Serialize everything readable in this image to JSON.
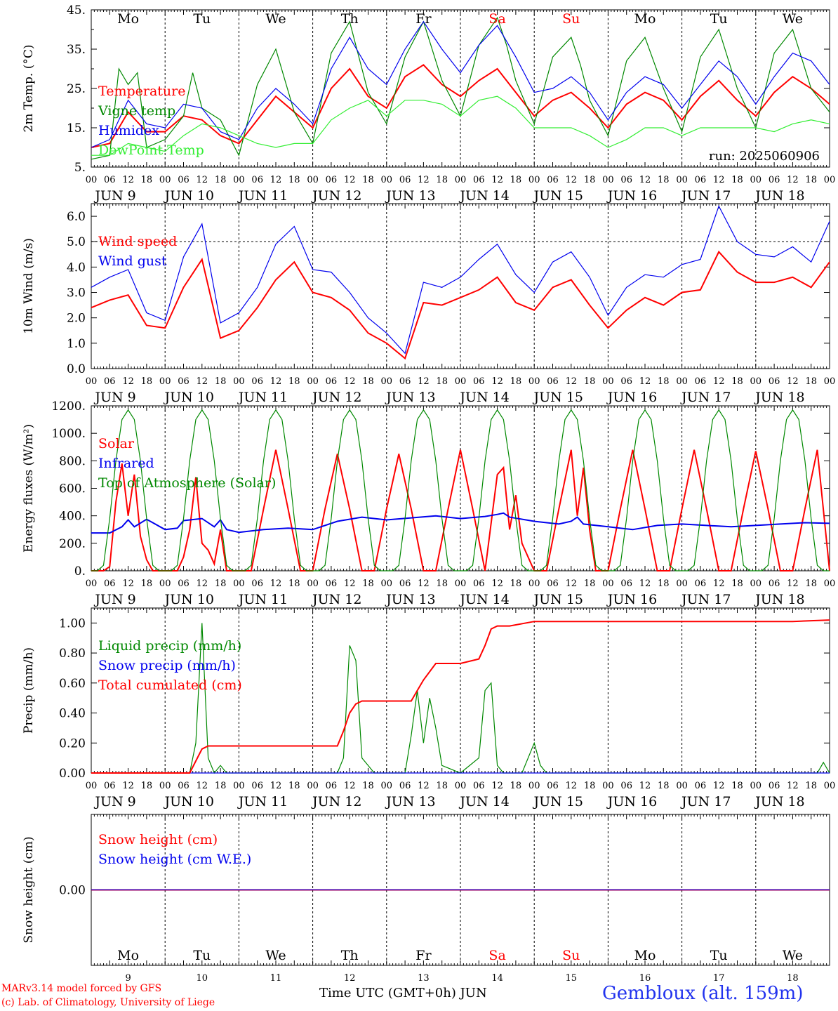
{
  "days_abbrev": [
    "Mo",
    "Tu",
    "We",
    "Th",
    "Fr",
    "Sa",
    "Su",
    "Mo",
    "Tu",
    "We"
  ],
  "day_numbers": [
    "9",
    "10",
    "11",
    "12",
    "13",
    "14",
    "15",
    "16",
    "17",
    "18"
  ],
  "date_labels": [
    "JUN  9",
    "JUN 10",
    "JUN 11",
    "JUN 12",
    "JUN 13",
    "JUN 14",
    "JUN 15",
    "JUN 16",
    "JUN 17",
    "JUN 18"
  ],
  "hour_ticks": [
    "00",
    "06",
    "12",
    "18"
  ],
  "hour_end": "00",
  "weekend_color": "#ff0000",
  "footer": {
    "credit_line1": "MARv3.14 model forced by GFS",
    "credit_line2": "(c) Lab. of Climatology, University of Liege",
    "x_title": "Time UTC (GMT+0h) JUN",
    "station": "Gembloux (alt. 159m)"
  },
  "chart_data": [
    {
      "type": "line",
      "ylabel": "2m Temp. (°C)",
      "ylim": [
        5,
        45
      ],
      "yticks": [
        "5.",
        "15.",
        "25.",
        "35.",
        "45."
      ],
      "annotation": "run: 2025060906",
      "series": [
        {
          "name": "Temperature",
          "color": "#ff0000",
          "x": [
            0,
            6,
            12,
            18,
            24,
            30,
            36,
            42,
            48,
            54,
            60,
            66,
            72,
            78,
            84,
            90,
            96,
            102,
            108,
            114,
            120,
            126,
            132,
            138,
            144,
            150,
            156,
            162,
            168,
            174,
            180,
            186,
            192,
            198,
            204,
            210,
            216,
            222,
            228,
            234,
            240
          ],
          "values": [
            10,
            11,
            19,
            14,
            14,
            18,
            17,
            13,
            11,
            17,
            23,
            19,
            15,
            25,
            30,
            23,
            20,
            28,
            31,
            26,
            23,
            27,
            30,
            24,
            18,
            22,
            24,
            20,
            15,
            21,
            24,
            22,
            17,
            23,
            27,
            22,
            18,
            24,
            28,
            25,
            21
          ]
        },
        {
          "name": "Vigne temp",
          "color": "#008800",
          "x": [
            0,
            6,
            9,
            12,
            15,
            18,
            24,
            30,
            33,
            36,
            42,
            48,
            54,
            60,
            66,
            72,
            78,
            84,
            90,
            96,
            102,
            108,
            114,
            120,
            126,
            132,
            135,
            138,
            144,
            150,
            156,
            159,
            162,
            168,
            174,
            180,
            186,
            192,
            198,
            204,
            210,
            216,
            222,
            228,
            234,
            240
          ],
          "values": [
            7,
            8,
            30,
            26,
            29,
            10,
            12,
            18,
            29,
            20,
            17,
            8,
            26,
            35,
            19,
            11,
            34,
            42,
            24,
            16,
            33,
            42,
            27,
            18,
            36,
            43,
            36,
            27,
            16,
            33,
            38,
            31,
            22,
            13,
            32,
            38,
            25,
            14,
            33,
            40,
            25,
            15,
            34,
            40,
            25,
            19
          ]
        },
        {
          "name": "Humidex",
          "color": "#0000ee",
          "x": [
            0,
            6,
            12,
            18,
            24,
            30,
            36,
            42,
            48,
            54,
            60,
            66,
            72,
            78,
            84,
            90,
            96,
            102,
            108,
            114,
            120,
            126,
            132,
            138,
            144,
            150,
            156,
            162,
            168,
            174,
            180,
            186,
            192,
            198,
            204,
            210,
            216,
            222,
            228,
            234,
            240
          ],
          "values": [
            10,
            12,
            22,
            16,
            15,
            21,
            20,
            14,
            12,
            20,
            25,
            21,
            16,
            30,
            38,
            30,
            26,
            35,
            42,
            35,
            29,
            36,
            41,
            33,
            24,
            25,
            28,
            24,
            17,
            24,
            28,
            26,
            20,
            26,
            32,
            28,
            21,
            28,
            34,
            32,
            26
          ]
        },
        {
          "name": "DewPoint Temp",
          "color": "#33ee33",
          "x": [
            0,
            6,
            12,
            18,
            24,
            30,
            36,
            42,
            48,
            54,
            60,
            66,
            72,
            78,
            84,
            90,
            96,
            102,
            108,
            114,
            120,
            126,
            132,
            138,
            144,
            150,
            156,
            162,
            168,
            174,
            180,
            186,
            192,
            198,
            204,
            210,
            216,
            222,
            228,
            234,
            240
          ],
          "values": [
            8,
            8,
            11,
            10,
            9,
            13,
            16,
            15,
            13,
            11,
            10,
            11,
            11,
            17,
            20,
            22,
            18,
            22,
            22,
            21,
            18,
            22,
            23,
            20,
            15,
            15,
            15,
            13,
            10,
            12,
            15,
            15,
            13,
            15,
            15,
            15,
            15,
            14,
            16,
            17,
            16
          ]
        }
      ]
    },
    {
      "type": "line",
      "ylabel": "10m Wind (m/s)",
      "ylim": [
        0,
        6.5
      ],
      "yticks": [
        "0.0",
        "1.0",
        "2.0",
        "3.0",
        "4.0",
        "5.0",
        "6.0"
      ],
      "reference_line": 5.0,
      "series": [
        {
          "name": "Wind speed",
          "color": "#ff0000",
          "x": [
            0,
            6,
            12,
            18,
            24,
            30,
            36,
            42,
            48,
            54,
            60,
            66,
            72,
            78,
            84,
            90,
            96,
            102,
            108,
            114,
            120,
            126,
            132,
            138,
            144,
            150,
            156,
            162,
            168,
            174,
            180,
            186,
            192,
            198,
            204,
            210,
            216,
            222,
            228,
            234,
            240
          ],
          "values": [
            2.4,
            2.7,
            2.9,
            1.7,
            1.6,
            3.2,
            4.3,
            1.2,
            1.5,
            2.4,
            3.5,
            4.2,
            3.0,
            2.8,
            2.3,
            1.4,
            1.0,
            0.4,
            2.6,
            2.5,
            2.8,
            3.1,
            3.6,
            2.6,
            2.3,
            3.2,
            3.5,
            2.5,
            1.6,
            2.3,
            2.8,
            2.5,
            3.0,
            3.1,
            4.6,
            3.8,
            3.4,
            3.4,
            3.6,
            3.2,
            4.2
          ]
        },
        {
          "name": "Wind gust",
          "color": "#0000ee",
          "x": [
            0,
            6,
            12,
            18,
            24,
            30,
            36,
            42,
            48,
            54,
            60,
            66,
            72,
            78,
            84,
            90,
            96,
            102,
            108,
            114,
            120,
            126,
            132,
            138,
            144,
            150,
            156,
            162,
            168,
            174,
            180,
            186,
            192,
            198,
            204,
            210,
            216,
            222,
            228,
            234,
            240
          ],
          "values": [
            3.2,
            3.6,
            3.9,
            2.2,
            1.9,
            4.4,
            5.7,
            1.8,
            2.2,
            3.2,
            4.9,
            5.6,
            3.9,
            3.8,
            3.0,
            2.0,
            1.4,
            0.6,
            3.4,
            3.2,
            3.6,
            4.3,
            4.9,
            3.7,
            3.0,
            4.2,
            4.6,
            3.6,
            2.1,
            3.2,
            3.7,
            3.6,
            4.1,
            4.3,
            6.4,
            5.0,
            4.5,
            4.4,
            4.8,
            4.2,
            5.8
          ]
        }
      ]
    },
    {
      "type": "line",
      "ylabel": "Energy fluxes (W/m²)",
      "ylim": [
        0,
        1200
      ],
      "yticks": [
        "0.",
        "200.",
        "400.",
        "600.",
        "800.",
        "1000.",
        "1200."
      ],
      "series": [
        {
          "name": "Solar",
          "color": "#ff0000",
          "x": [
            0,
            4,
            6,
            8,
            10,
            12,
            14,
            16,
            18,
            20,
            24,
            28,
            30,
            32,
            34,
            36,
            38,
            40,
            42,
            44,
            48,
            52,
            56,
            60,
            64,
            68,
            72,
            76,
            80,
            84,
            88,
            92,
            96,
            100,
            104,
            108,
            112,
            116,
            120,
            124,
            128,
            132,
            134,
            136,
            138,
            140,
            144,
            148,
            152,
            156,
            158,
            160,
            162,
            164,
            168,
            172,
            176,
            180,
            184,
            188,
            192,
            196,
            200,
            204,
            208,
            212,
            216,
            220,
            224,
            228,
            232,
            236,
            240
          ],
          "values": [
            0,
            0,
            30,
            500,
            780,
            400,
            700,
            250,
            80,
            0,
            0,
            0,
            100,
            300,
            680,
            200,
            150,
            50,
            300,
            0,
            0,
            0,
            450,
            880,
            450,
            0,
            0,
            450,
            850,
            450,
            0,
            0,
            450,
            850,
            450,
            0,
            0,
            450,
            880,
            450,
            0,
            700,
            750,
            300,
            550,
            200,
            0,
            0,
            450,
            880,
            400,
            750,
            300,
            0,
            0,
            450,
            880,
            450,
            0,
            0,
            450,
            880,
            450,
            0,
            0,
            450,
            870,
            450,
            0,
            0,
            450,
            880,
            0
          ]
        },
        {
          "name": "Infrared",
          "color": "#0000ee",
          "x": [
            0,
            6,
            10,
            12,
            14,
            18,
            20,
            24,
            28,
            30,
            36,
            40,
            42,
            44,
            48,
            56,
            64,
            72,
            80,
            88,
            96,
            104,
            112,
            120,
            128,
            132,
            134,
            136,
            144,
            152,
            156,
            158,
            160,
            168,
            176,
            184,
            192,
            200,
            208,
            216,
            224,
            232,
            240
          ],
          "values": [
            275,
            275,
            320,
            370,
            320,
            375,
            350,
            300,
            310,
            365,
            380,
            320,
            370,
            300,
            280,
            300,
            310,
            300,
            360,
            390,
            370,
            385,
            400,
            380,
            395,
            410,
            420,
            390,
            360,
            340,
            360,
            390,
            340,
            320,
            300,
            330,
            340,
            330,
            320,
            330,
            340,
            350,
            345
          ]
        },
        {
          "name": "Top of Atmosphere (Solar)",
          "color": "#008800",
          "x": [
            0,
            2,
            4,
            6,
            8,
            10,
            12,
            14,
            16,
            18,
            20,
            22,
            24
          ],
          "period": 24,
          "values": [
            0,
            0,
            40,
            380,
            800,
            1100,
            1170,
            1100,
            800,
            380,
            40,
            0,
            0
          ]
        }
      ]
    },
    {
      "type": "line",
      "ylabel": "Precip (mm/h)",
      "ylim": [
        0,
        1.1
      ],
      "yticks": [
        "0.00",
        "0.20",
        "0.40",
        "0.60",
        "0.80",
        "1.00"
      ],
      "series": [
        {
          "name": "Liquid precip (mm/h)",
          "color": "#008800",
          "x": [
            0,
            10,
            12,
            14,
            16,
            18,
            20,
            22,
            24,
            28,
            30,
            32,
            34,
            36,
            38,
            40,
            42,
            44,
            48,
            60,
            72,
            80,
            82,
            84,
            86,
            88,
            90,
            92,
            96,
            102,
            104,
            106,
            108,
            110,
            112,
            114,
            120,
            126,
            128,
            130,
            132,
            134,
            136,
            138,
            140,
            144,
            146,
            148,
            150,
            156,
            168,
            180,
            192,
            216,
            236,
            238,
            240
          ],
          "values": [
            0,
            0,
            0,
            0,
            0,
            0,
            0,
            0,
            0,
            0,
            0,
            0,
            0.2,
            1.0,
            0.1,
            0,
            0.05,
            0,
            0,
            0,
            0,
            0,
            0.1,
            0.85,
            0.75,
            0.1,
            0.05,
            0,
            0,
            0,
            0.25,
            0.55,
            0.2,
            0.5,
            0.3,
            0.05,
            0,
            0.1,
            0.55,
            0.6,
            0.05,
            0,
            0,
            0,
            0,
            0.2,
            0.05,
            0,
            0,
            0,
            0,
            0,
            0,
            0,
            0,
            0.07,
            0
          ]
        },
        {
          "name": "Snow precip (mm/h)",
          "color": "#0000ee",
          "x": [
            0,
            240
          ],
          "values": [
            0,
            0
          ]
        },
        {
          "name": "Total cumulated (cm)",
          "color": "#ff0000",
          "x": [
            0,
            32,
            36,
            38,
            48,
            60,
            72,
            80,
            82,
            84,
            86,
            88,
            96,
            104,
            106,
            108,
            112,
            120,
            126,
            128,
            130,
            132,
            136,
            144,
            150,
            156,
            168,
            180,
            192,
            204,
            216,
            228,
            240
          ],
          "values": [
            0,
            0,
            0.16,
            0.18,
            0.18,
            0.18,
            0.18,
            0.18,
            0.28,
            0.4,
            0.46,
            0.48,
            0.48,
            0.48,
            0.55,
            0.62,
            0.73,
            0.73,
            0.76,
            0.85,
            0.96,
            0.98,
            0.98,
            1.01,
            1.01,
            1.01,
            1.01,
            1.01,
            1.01,
            1.01,
            1.01,
            1.01,
            1.02
          ]
        }
      ]
    },
    {
      "type": "line",
      "ylabel": "Snow height (cm)",
      "ylim": [
        -1,
        1
      ],
      "yticks": [
        "0.00"
      ],
      "series": [
        {
          "name": "Snow height (cm)",
          "color": "#ff0000",
          "x": [
            0,
            240
          ],
          "values": [
            0,
            0
          ]
        },
        {
          "name": "Snow height (cm W.E.)",
          "color": "#0000ee",
          "x": [
            0,
            240
          ],
          "values": [
            0,
            0
          ]
        }
      ]
    }
  ]
}
